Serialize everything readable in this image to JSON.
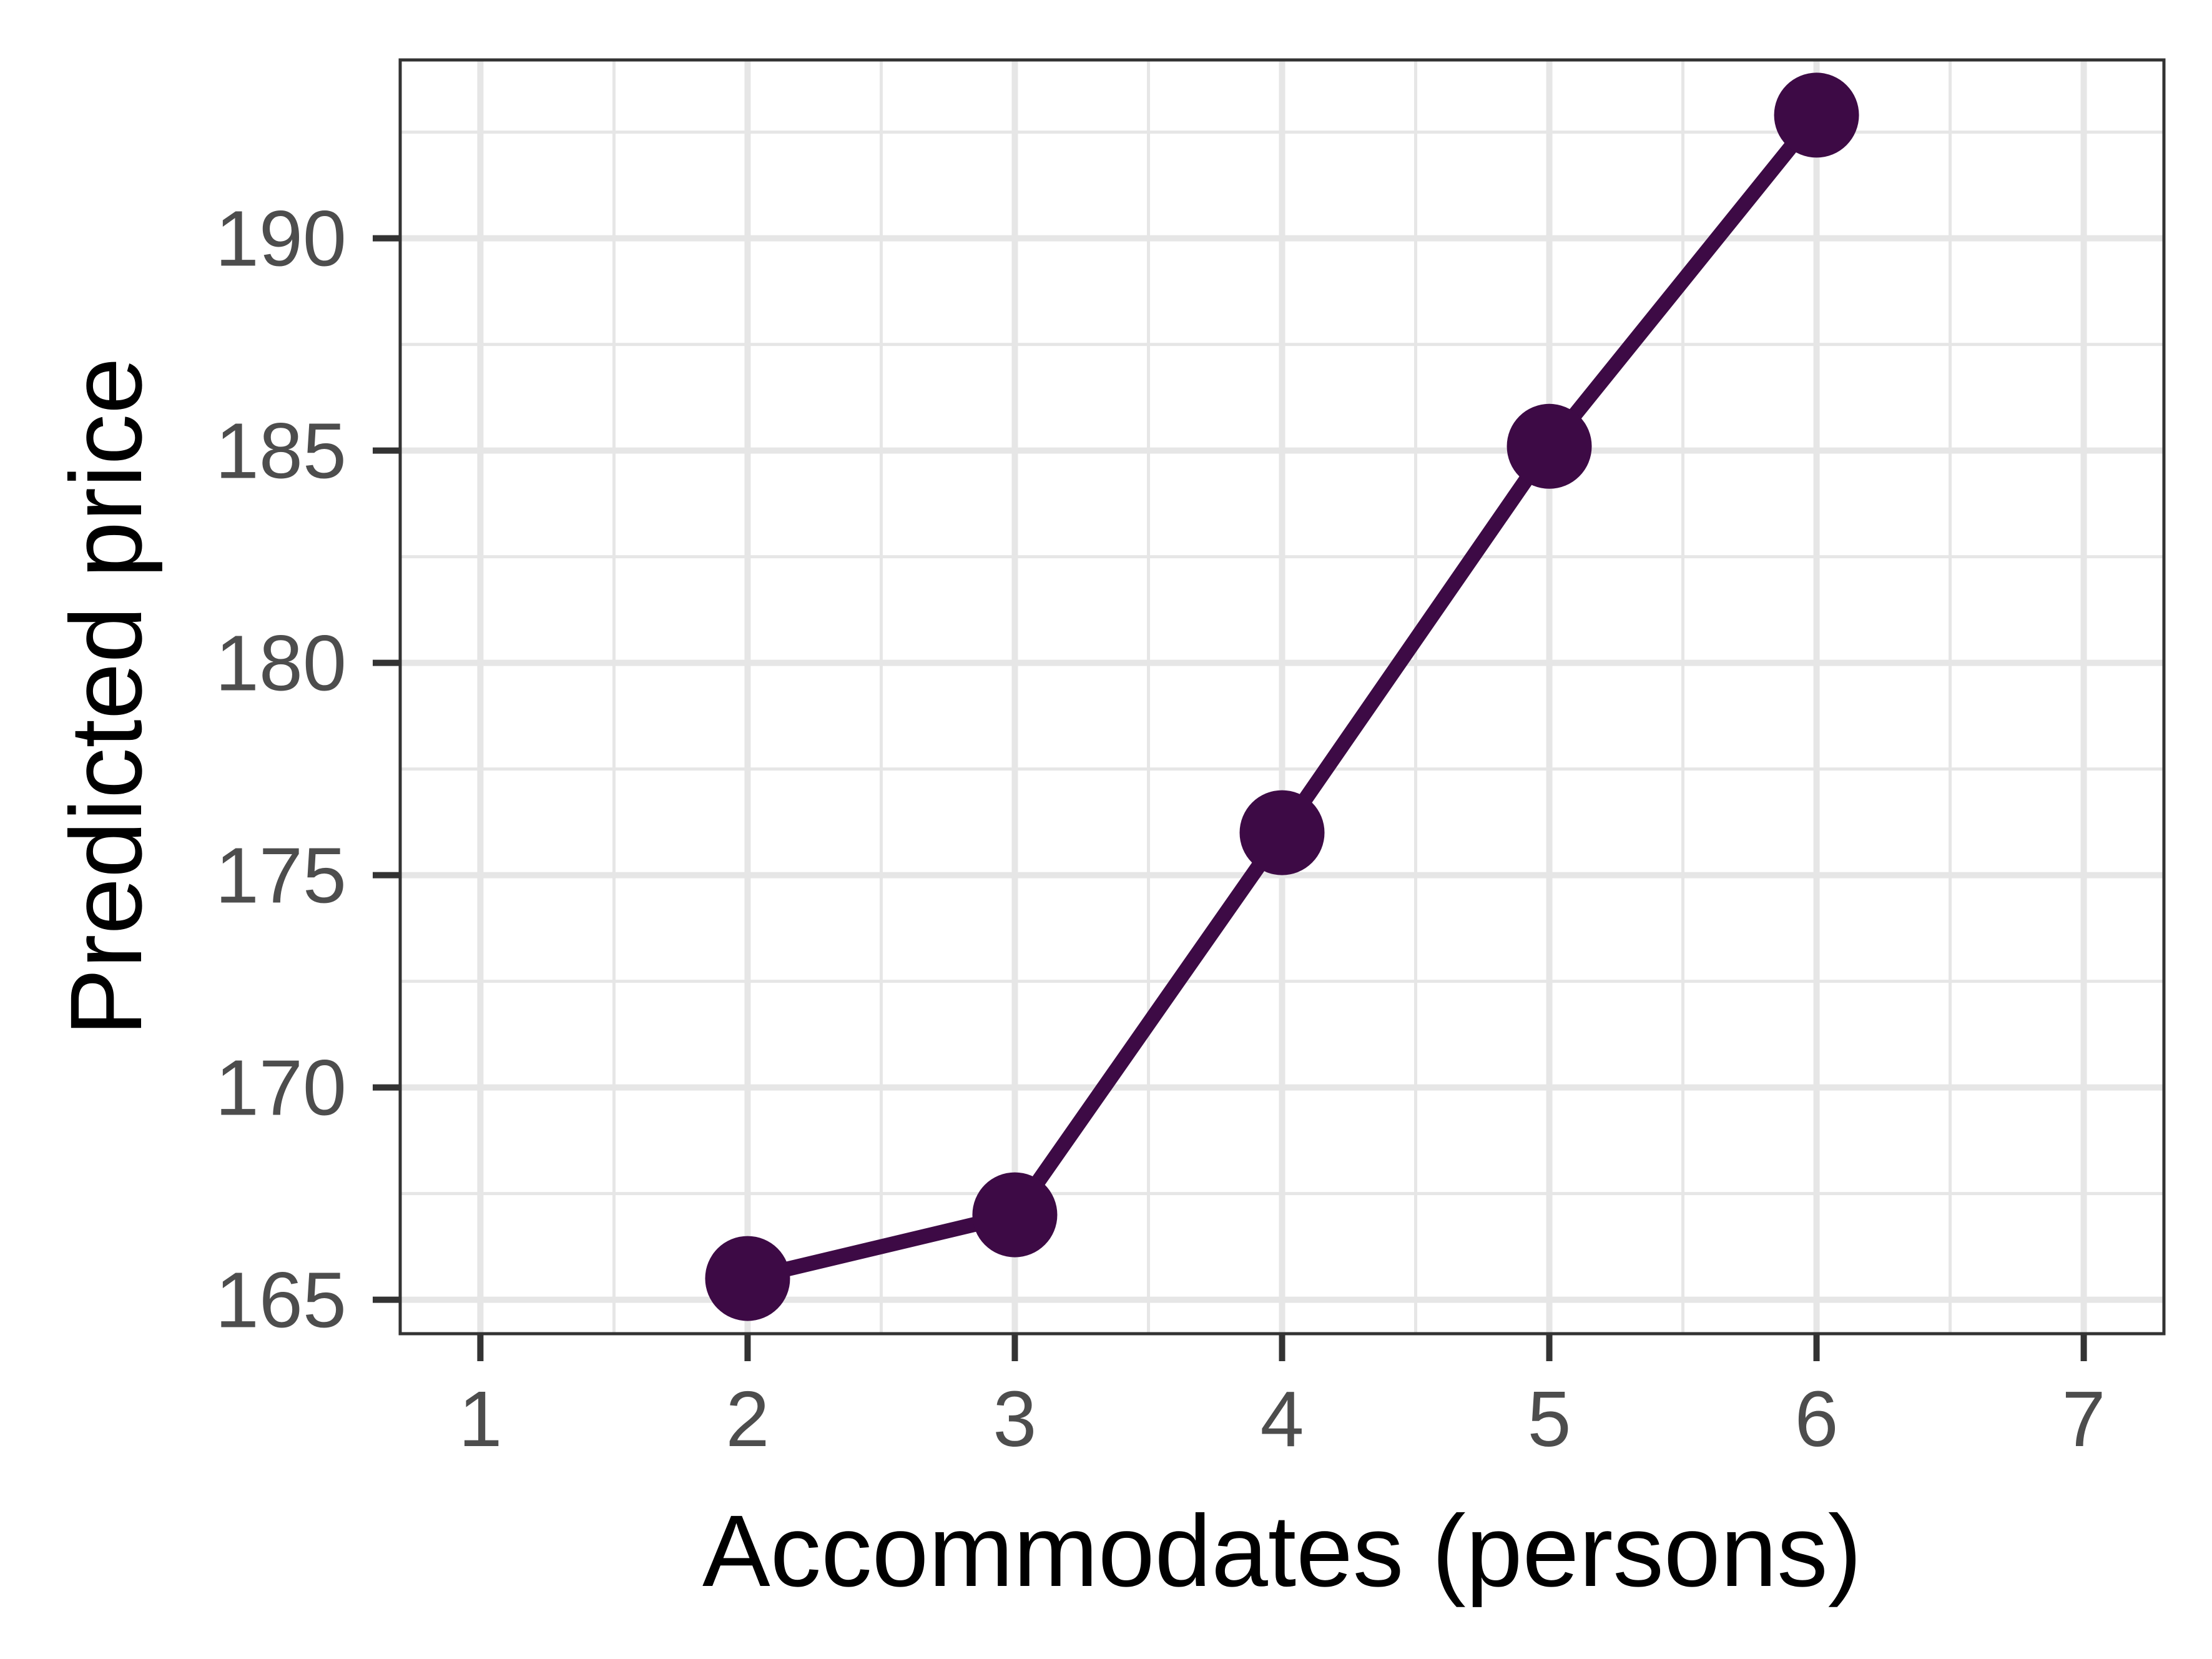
{
  "chart_data": {
    "type": "line",
    "xlabel": "Accommodates (persons)",
    "ylabel": "Predicted price",
    "xlim": [
      0.7,
      7.3
    ],
    "ylim": [
      164.2,
      194.2
    ],
    "x_ticks": [
      1,
      2,
      3,
      4,
      5,
      6,
      7
    ],
    "y_ticks": [
      165,
      170,
      175,
      180,
      185,
      190
    ],
    "grid": true,
    "series": [
      {
        "x": [
          2,
          3,
          4,
          5,
          6
        ],
        "y": [
          165.5,
          167.0,
          176.0,
          185.1,
          192.9
        ],
        "color": "#3d0a45"
      }
    ],
    "colors": {
      "line": "#3d0a45",
      "grid": "#e6e6e6",
      "panel_border": "#333333",
      "tick_text": "#4d4d4d"
    }
  }
}
